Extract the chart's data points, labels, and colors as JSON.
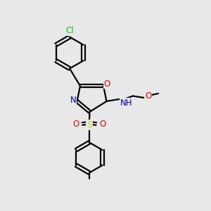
{
  "bg_color": "#e8e8e8",
  "bond_color": "#000000",
  "bond_lw": 1.6,
  "atom_colors": {
    "Cl": "#00cc00",
    "O": "#ff0000",
    "N": "#0000ff",
    "S": "#cccc00",
    "H": "#4a9a9a",
    "C": "#000000"
  },
  "font_size": 8.5,
  "font_size_small": 7.5
}
